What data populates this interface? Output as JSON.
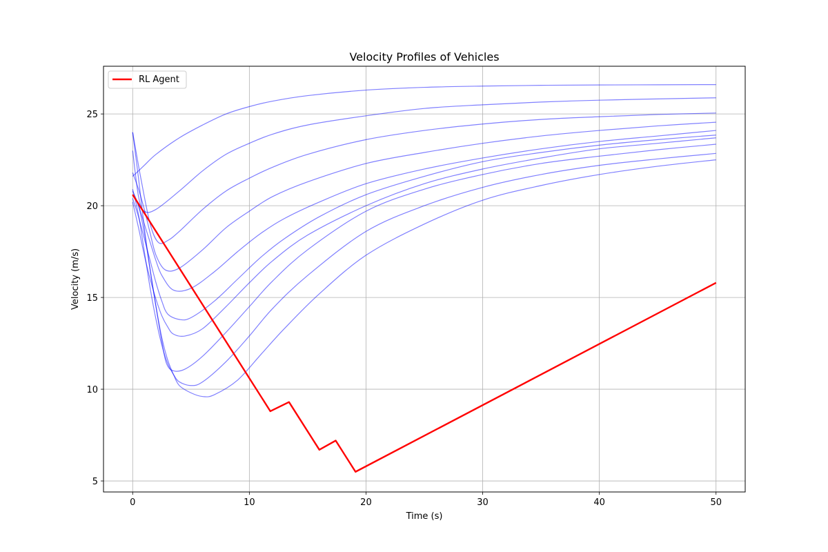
{
  "chart_data": {
    "type": "line",
    "title": "Velocity Profiles of Vehicles",
    "xlabel": "Time (s)",
    "ylabel": "Velocity (m/s)",
    "xlim": [
      -2.5,
      52.5
    ],
    "ylim": [
      4.4,
      27.6
    ],
    "xticks": [
      0,
      10,
      20,
      30,
      40,
      50
    ],
    "yticks": [
      5,
      10,
      15,
      20,
      25
    ],
    "grid": true,
    "legend_position": "top-left",
    "colors": {
      "vehicles": "#0000ff",
      "agent": "#ff0000",
      "grid": "#b0b0b0"
    },
    "series": [
      {
        "name": "RL Agent",
        "role": "agent",
        "x": [
          0,
          11.8,
          13.4,
          16.0,
          17.4,
          19.1,
          50
        ],
        "y": [
          20.6,
          8.8,
          9.3,
          6.7,
          7.2,
          5.5,
          15.8
        ]
      },
      {
        "role": "vehicle",
        "x": [
          0,
          1,
          2,
          4,
          6,
          8,
          10,
          12,
          15,
          20,
          25,
          30,
          35,
          40,
          45,
          50
        ],
        "y": [
          21.6,
          22.2,
          22.8,
          23.7,
          24.4,
          25.0,
          25.4,
          25.7,
          26.0,
          26.3,
          26.45,
          26.52,
          26.56,
          26.58,
          26.59,
          26.6
        ]
      },
      {
        "role": "vehicle",
        "x": [
          0,
          0.5,
          1,
          2,
          4,
          6,
          8,
          10,
          12,
          15,
          20,
          25,
          30,
          35,
          40,
          45,
          50
        ],
        "y": [
          23.0,
          20.5,
          19.7,
          19.8,
          20.8,
          21.9,
          22.8,
          23.4,
          23.9,
          24.4,
          24.9,
          25.3,
          25.5,
          25.65,
          25.75,
          25.82,
          25.88
        ]
      },
      {
        "role": "vehicle",
        "x": [
          0,
          0.7,
          1.5,
          2.2,
          3,
          4,
          6,
          8,
          10,
          12,
          15,
          20,
          25,
          30,
          35,
          40,
          45,
          50
        ],
        "y": [
          24.0,
          21.5,
          19.0,
          18.0,
          18.1,
          18.6,
          19.8,
          20.8,
          21.5,
          22.1,
          22.8,
          23.6,
          24.1,
          24.45,
          24.7,
          24.85,
          24.97,
          25.05
        ]
      },
      {
        "role": "vehicle",
        "x": [
          0,
          0.5,
          1,
          1.5,
          2,
          2.8,
          4,
          6,
          8,
          10,
          12,
          15,
          20,
          25,
          30,
          35,
          40,
          45,
          50
        ],
        "y": [
          21.8,
          20.9,
          19.8,
          18.5,
          17.3,
          16.5,
          16.6,
          17.6,
          18.8,
          19.7,
          20.5,
          21.3,
          22.3,
          22.9,
          23.4,
          23.8,
          24.1,
          24.35,
          24.55
        ]
      },
      {
        "role": "vehicle",
        "x": [
          0,
          0.5,
          1,
          1.5,
          2,
          2.5,
          3.5,
          5,
          7,
          9,
          11,
          13,
          16,
          20,
          25,
          30,
          35,
          40,
          45,
          50
        ],
        "y": [
          20.6,
          20.0,
          19.0,
          18.0,
          17.0,
          16.2,
          15.4,
          15.5,
          16.4,
          17.5,
          18.5,
          19.3,
          20.2,
          21.2,
          22.0,
          22.6,
          23.1,
          23.5,
          23.8,
          24.1
        ]
      },
      {
        "role": "vehicle",
        "x": [
          0,
          0.5,
          1,
          1.5,
          2,
          2.5,
          3,
          4,
          5,
          7,
          9,
          11,
          13,
          16,
          20,
          25,
          30,
          35,
          40,
          45,
          50
        ],
        "y": [
          20.4,
          19.4,
          18.2,
          17.0,
          15.8,
          14.8,
          14.1,
          13.8,
          13.9,
          14.8,
          16.0,
          17.2,
          18.2,
          19.4,
          20.6,
          21.6,
          22.4,
          22.9,
          23.3,
          23.6,
          23.85
        ]
      },
      {
        "role": "vehicle",
        "x": [
          0,
          0.5,
          1,
          1.5,
          2,
          2.5,
          3,
          3.5,
          4.5,
          6,
          8,
          10,
          12,
          15,
          20,
          25,
          30,
          35,
          40,
          45,
          50
        ],
        "y": [
          20.2,
          18.8,
          17.3,
          16.0,
          14.9,
          14.0,
          13.4,
          13.0,
          12.9,
          13.3,
          14.5,
          15.8,
          17.0,
          18.4,
          20.0,
          21.2,
          22.0,
          22.6,
          23.1,
          23.4,
          23.7
        ]
      },
      {
        "role": "vehicle",
        "x": [
          0,
          0.5,
          1,
          1.5,
          2,
          2.5,
          2.9,
          3.5,
          4.5,
          6,
          8,
          10,
          12,
          15,
          20,
          25,
          30,
          35,
          40,
          45,
          50
        ],
        "y": [
          24.0,
          21.5,
          18.8,
          16.5,
          14.5,
          12.6,
          11.4,
          11.0,
          11.1,
          11.8,
          13.1,
          14.5,
          15.9,
          17.6,
          19.7,
          20.9,
          21.7,
          22.3,
          22.7,
          23.05,
          23.35
        ]
      },
      {
        "role": "vehicle",
        "x": [
          0,
          0.5,
          1,
          1.5,
          2,
          2.5,
          3,
          3.5,
          4,
          5,
          6,
          8,
          10,
          12,
          15,
          20,
          25,
          30,
          35,
          40,
          45,
          50
        ],
        "y": [
          20.9,
          19.5,
          17.5,
          15.5,
          13.8,
          12.4,
          11.4,
          10.8,
          10.4,
          10.2,
          10.4,
          11.5,
          12.9,
          14.4,
          16.2,
          18.6,
          20.0,
          21.0,
          21.7,
          22.2,
          22.55,
          22.85
        ]
      },
      {
        "role": "vehicle",
        "x": [
          0,
          0.5,
          1,
          1.5,
          2,
          2.5,
          3,
          3.5,
          4,
          5,
          6,
          7,
          9,
          11,
          13,
          16,
          20,
          25,
          30,
          35,
          40,
          45,
          50
        ],
        "y": [
          20.8,
          20.0,
          18.5,
          16.5,
          14.5,
          12.8,
          11.6,
          10.8,
          10.2,
          9.8,
          9.6,
          9.7,
          10.5,
          11.9,
          13.3,
          15.2,
          17.3,
          19.0,
          20.3,
          21.1,
          21.7,
          22.15,
          22.5
        ]
      }
    ]
  }
}
